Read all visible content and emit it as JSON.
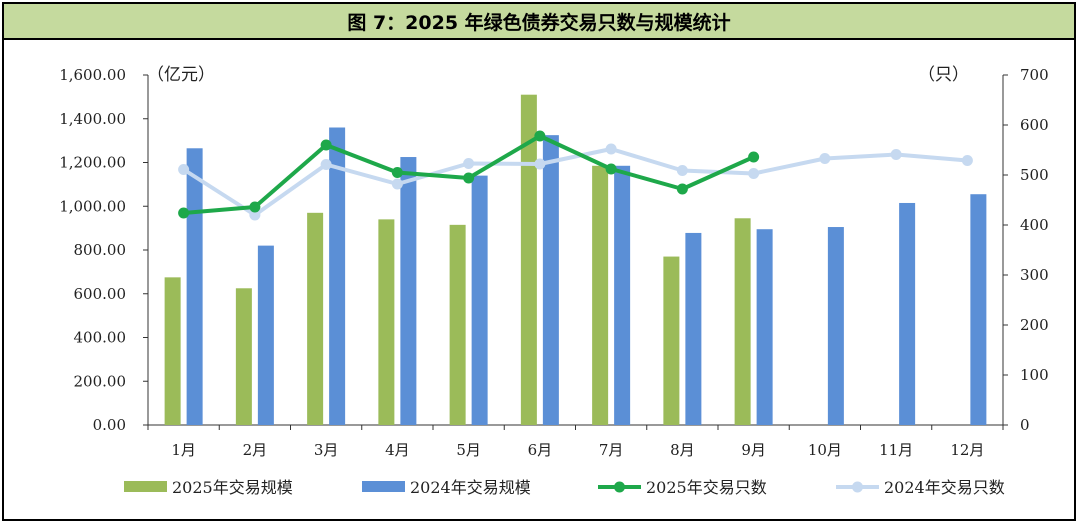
{
  "title": "图 7：2025 年绿色债券交易只数与规模统计",
  "chart_data": {
    "type": "bar",
    "categories": [
      "1月",
      "2月",
      "3月",
      "4月",
      "5月",
      "6月",
      "7月",
      "8月",
      "9月",
      "10月",
      "11月",
      "12月"
    ],
    "left_axis": {
      "unit": "（亿元）",
      "min": 0,
      "max": 1600,
      "step": 200,
      "tick_labels": [
        "0.00",
        "200.00",
        "400.00",
        "600.00",
        "800.00",
        "1,000.00",
        "1,200.00",
        "1,400.00",
        "1,600.00"
      ]
    },
    "right_axis": {
      "unit": "（只）",
      "min": 0,
      "max": 700,
      "step": 100,
      "tick_labels": [
        "0",
        "100",
        "200",
        "300",
        "400",
        "500",
        "600",
        "700"
      ]
    },
    "series": [
      {
        "name": "2025年交易规模",
        "kind": "bar",
        "axis": "left",
        "color": "#9bbb59",
        "values": [
          675,
          625,
          970,
          940,
          915,
          1510,
          1185,
          770,
          945,
          null,
          null,
          null
        ]
      },
      {
        "name": "2024年交易规模",
        "kind": "bar",
        "axis": "left",
        "color": "#5b8fd6",
        "values": [
          1265,
          820,
          1360,
          1225,
          1140,
          1325,
          1185,
          878,
          895,
          905,
          1015,
          1055
        ]
      },
      {
        "name": "2025年交易只数",
        "kind": "line",
        "axis": "right",
        "color": "#1ea84a",
        "values": [
          424,
          436,
          560,
          505,
          494,
          578,
          512,
          472,
          536,
          null,
          null,
          null
        ]
      },
      {
        "name": "2024年交易只数",
        "kind": "line",
        "axis": "right",
        "color": "#c6d9f0",
        "values": [
          511,
          420,
          521,
          482,
          523,
          522,
          552,
          509,
          503,
          533,
          541,
          529
        ]
      }
    ],
    "legend_position": "bottom",
    "grid": false
  }
}
